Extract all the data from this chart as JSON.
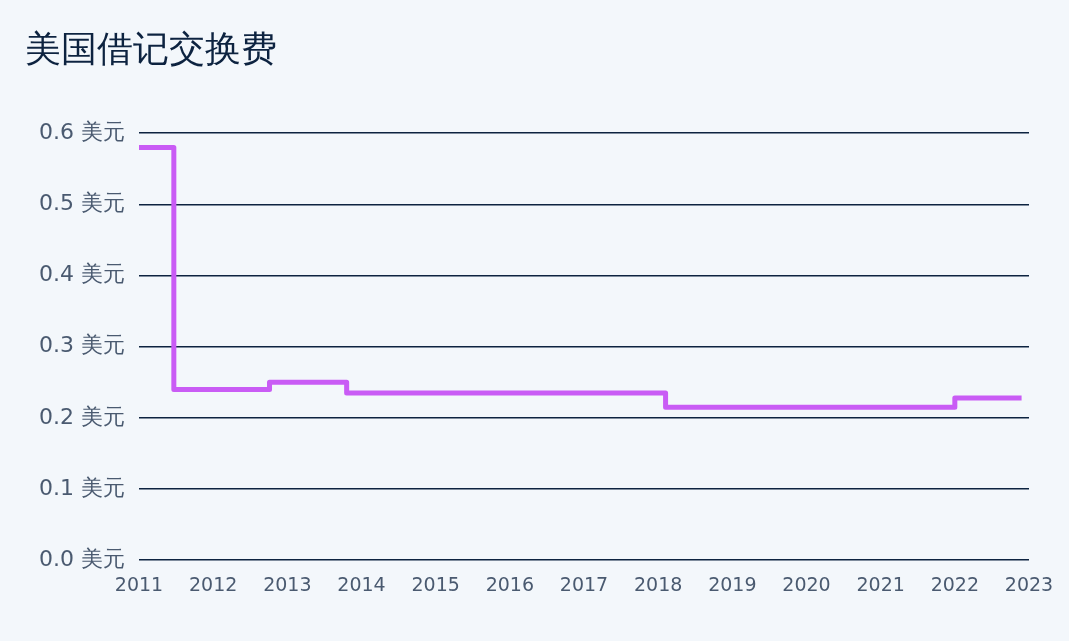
{
  "chart_data": {
    "type": "step",
    "title": "美国借记交换费",
    "series": [
      {
        "color": "#c95cf5",
        "x": [
          2011,
          2011.47,
          2012.76,
          2013.8,
          2018.1,
          2022,
          2022.9
        ],
        "values": [
          0.58,
          0.24,
          0.25,
          0.235,
          0.215,
          0.228,
          0.228
        ]
      }
    ],
    "xlim": [
      2011,
      2023
    ],
    "xticks": [
      2011,
      2012,
      2013,
      2014,
      2015,
      2016,
      2017,
      2018,
      2019,
      2020,
      2021,
      2022,
      2023
    ],
    "ylim": [
      0,
      0.6
    ],
    "yticks": [
      {
        "value": 0,
        "label": "0.0 美元"
      },
      {
        "value": 0.1,
        "label": "0.1 美元"
      },
      {
        "value": 0.2,
        "label": "0.2 美元"
      },
      {
        "value": 0.3,
        "label": "0.3 美元"
      },
      {
        "value": 0.4,
        "label": "0.4 美元"
      },
      {
        "value": 0.5,
        "label": "0.5 美元"
      },
      {
        "value": 0.6,
        "label": "0.6 美元"
      }
    ],
    "grid": "y",
    "legend": false,
    "marker": "none",
    "line_style": "solid"
  }
}
